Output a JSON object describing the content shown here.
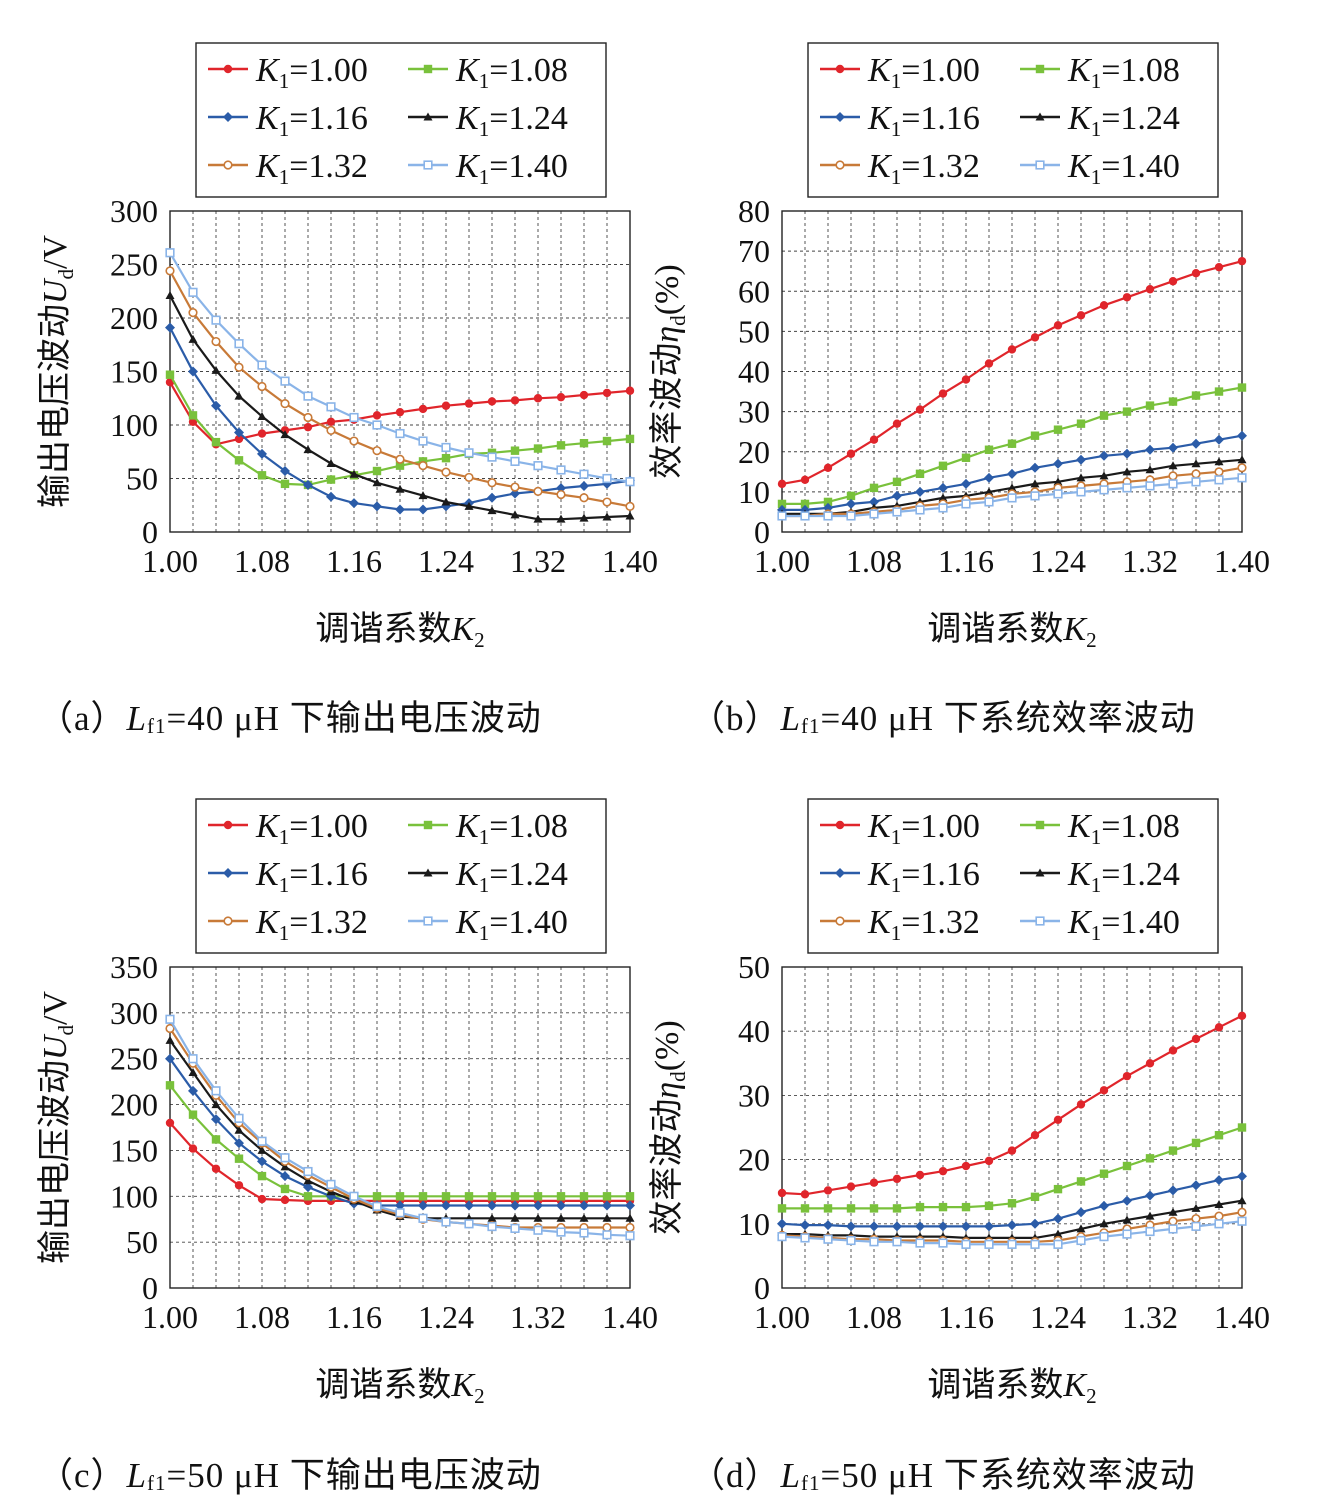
{
  "x_ticks": [
    "1.00",
    "1.08",
    "1.16",
    "1.24",
    "1.32",
    "1.40"
  ],
  "x_label": {
    "main": "调谐系数",
    "italic": "K",
    "sub": "2"
  },
  "legend_labels": [
    {
      "italic": "K",
      "sub": "1",
      "value": "=1.00"
    },
    {
      "italic": "K",
      "sub": "1",
      "value": "=1.08"
    },
    {
      "italic": "K",
      "sub": "1",
      "value": "=1.16"
    },
    {
      "italic": "K",
      "sub": "1",
      "value": "=1.24"
    },
    {
      "italic": "K",
      "sub": "1",
      "value": "=1.32"
    },
    {
      "italic": "K",
      "sub": "1",
      "value": "=1.40"
    }
  ],
  "series_colors": [
    "#e0252b",
    "#79c13b",
    "#2b5ca8",
    "#1a1a1a",
    "#c87a38",
    "#8ab4e8"
  ],
  "captions": [
    {
      "pre": "（a）",
      "italic": "L",
      "sub": "f1",
      "post": "=40 μH 下输出电压波动"
    },
    {
      "pre": "（b）",
      "italic": "L",
      "sub": "f1",
      "post": "=40 μH 下系统效率波动"
    },
    {
      "pre": "（c）",
      "italic": "L",
      "sub": "f1",
      "post": "=50 μH 下输出电压波动"
    },
    {
      "pre": "（d）",
      "italic": "L",
      "sub": "f1",
      "post": "=50 μH 下系统效率波动"
    }
  ],
  "chart_data": [
    {
      "type": "line",
      "ylabel": {
        "main": "输出电压波动",
        "italic": "U",
        "sub": "d",
        "post": "/V"
      },
      "ylim": [
        0,
        300
      ],
      "y_ticks": [
        "0",
        "50",
        "100",
        "150",
        "200",
        "250",
        "300"
      ],
      "xlim": [
        1.0,
        1.4
      ],
      "grid": true,
      "legend": "top",
      "x": [
        1.0,
        1.02,
        1.04,
        1.06,
        1.08,
        1.1,
        1.12,
        1.14,
        1.16,
        1.18,
        1.2,
        1.22,
        1.24,
        1.26,
        1.28,
        1.3,
        1.32,
        1.34,
        1.36,
        1.38,
        1.4
      ],
      "series": [
        {
          "name": "K1=1.00",
          "values": [
            140,
            103,
            82,
            87,
            92,
            95,
            98,
            103,
            105,
            109,
            112,
            115,
            118,
            120,
            122,
            123,
            125,
            126,
            128,
            130,
            132
          ]
        },
        {
          "name": "K1=1.08",
          "values": [
            147,
            109,
            84,
            67,
            53,
            45,
            44,
            49,
            53,
            57,
            62,
            66,
            69,
            73,
            74,
            76,
            78,
            81,
            83,
            85,
            87
          ]
        },
        {
          "name": "K1=1.16",
          "values": [
            191,
            150,
            118,
            93,
            73,
            57,
            44,
            33,
            27,
            24,
            21,
            21,
            24,
            27,
            32,
            36,
            38,
            41,
            43,
            45,
            48
          ]
        },
        {
          "name": "K1=1.24",
          "values": [
            221,
            180,
            151,
            127,
            108,
            91,
            77,
            64,
            54,
            46,
            40,
            34,
            28,
            24,
            20,
            16,
            12,
            12,
            13,
            14,
            15
          ]
        },
        {
          "name": "K1=1.32",
          "values": [
            244,
            205,
            178,
            154,
            136,
            120,
            107,
            95,
            85,
            76,
            68,
            62,
            56,
            51,
            46,
            42,
            38,
            35,
            32,
            28,
            24
          ]
        },
        {
          "name": "K1=1.40",
          "values": [
            261,
            224,
            198,
            176,
            156,
            141,
            127,
            117,
            107,
            100,
            92,
            85,
            79,
            74,
            70,
            66,
            62,
            58,
            54,
            50,
            47
          ]
        }
      ]
    },
    {
      "type": "line",
      "ylabel": {
        "main": "效率波动",
        "italic": "η",
        "sub": "d",
        "post": "(%)"
      },
      "ylim": [
        0,
        80
      ],
      "y_ticks": [
        "0",
        "10",
        "20",
        "30",
        "40",
        "50",
        "60",
        "70",
        "80"
      ],
      "xlim": [
        1.0,
        1.4
      ],
      "grid": true,
      "legend": "top",
      "x": [
        1.0,
        1.02,
        1.04,
        1.06,
        1.08,
        1.1,
        1.12,
        1.14,
        1.16,
        1.18,
        1.2,
        1.22,
        1.24,
        1.26,
        1.28,
        1.3,
        1.32,
        1.34,
        1.36,
        1.38,
        1.4
      ],
      "series": [
        {
          "name": "K1=1.00",
          "values": [
            12,
            13,
            16,
            19.5,
            23,
            27,
            30.5,
            34.5,
            38,
            42,
            45.5,
            48.5,
            51.5,
            54,
            56.5,
            58.5,
            60.5,
            62.5,
            64.5,
            66,
            67.5
          ]
        },
        {
          "name": "K1=1.08",
          "values": [
            7,
            7,
            7.5,
            9,
            11,
            12.5,
            14.5,
            16.5,
            18.5,
            20.5,
            22,
            24,
            25.5,
            27,
            29,
            30,
            31.5,
            32.5,
            34,
            35,
            36
          ]
        },
        {
          "name": "K1=1.16",
          "values": [
            5.5,
            5.5,
            6,
            7,
            7.5,
            9,
            10,
            11,
            12,
            13.5,
            14.5,
            16,
            17,
            18,
            19,
            19.5,
            20.5,
            21,
            22,
            23,
            24
          ]
        },
        {
          "name": "K1=1.24",
          "values": [
            4.5,
            4.5,
            4.5,
            5,
            6,
            6.5,
            7.5,
            8.5,
            9,
            10,
            11,
            12,
            12.5,
            13.5,
            14,
            15,
            15.5,
            16.5,
            17,
            17.5,
            18
          ]
        },
        {
          "name": "K1=1.32",
          "values": [
            4,
            4,
            4.5,
            4.5,
            5,
            5.5,
            6.5,
            7,
            8,
            8.5,
            9.5,
            10,
            11,
            11.5,
            12,
            12.5,
            13,
            14,
            14.5,
            15,
            16
          ]
        },
        {
          "name": "K1=1.40",
          "values": [
            4,
            4,
            4,
            4,
            4.5,
            5,
            5.5,
            6,
            7,
            7.5,
            8.5,
            9,
            9.5,
            10,
            10.5,
            11,
            11.5,
            12,
            12.5,
            13,
            13.5
          ]
        }
      ]
    },
    {
      "type": "line",
      "ylabel": {
        "main": "输出电压波动",
        "italic": "U",
        "sub": "d",
        "post": "/V"
      },
      "ylim": [
        0,
        350
      ],
      "y_ticks": [
        "0",
        "50",
        "100",
        "150",
        "200",
        "250",
        "300",
        "350"
      ],
      "xlim": [
        1.0,
        1.4
      ],
      "grid": true,
      "legend": "top",
      "x": [
        1.0,
        1.02,
        1.04,
        1.06,
        1.08,
        1.1,
        1.12,
        1.14,
        1.16,
        1.18,
        1.2,
        1.22,
        1.24,
        1.26,
        1.28,
        1.3,
        1.32,
        1.34,
        1.36,
        1.38,
        1.4
      ],
      "series": [
        {
          "name": "K1=1.00",
          "values": [
            180,
            152,
            130,
            112,
            97,
            96,
            95,
            95,
            95,
            95,
            95,
            95,
            95,
            95,
            95,
            95,
            95,
            95,
            95,
            95,
            95
          ]
        },
        {
          "name": "K1=1.08",
          "values": [
            221,
            189,
            162,
            141,
            122,
            108,
            100,
            100,
            100,
            100,
            100,
            100,
            100,
            100,
            100,
            100,
            100,
            100,
            100,
            100,
            100
          ]
        },
        {
          "name": "K1=1.16",
          "values": [
            250,
            215,
            184,
            158,
            138,
            122,
            110,
            100,
            92,
            90,
            90,
            90,
            90,
            90,
            90,
            90,
            90,
            90,
            90,
            90,
            90
          ]
        },
        {
          "name": "K1=1.24",
          "values": [
            270,
            235,
            200,
            172,
            150,
            132,
            117,
            105,
            95,
            85,
            78,
            76,
            76,
            76,
            76,
            76,
            76,
            76,
            76,
            76,
            76
          ]
        },
        {
          "name": "K1=1.32",
          "values": [
            283,
            245,
            210,
            180,
            158,
            138,
            123,
            110,
            97,
            87,
            80,
            75,
            72,
            70,
            68,
            66,
            66,
            66,
            66,
            66,
            66
          ]
        },
        {
          "name": "K1=1.40",
          "values": [
            293,
            250,
            215,
            185,
            160,
            142,
            127,
            113,
            100,
            89,
            82,
            76,
            72,
            70,
            67,
            65,
            63,
            61,
            60,
            58,
            57
          ]
        }
      ]
    },
    {
      "type": "line",
      "ylabel": {
        "main": "效率波动",
        "italic": "η",
        "sub": "d",
        "post": "(%)"
      },
      "ylim": [
        0,
        50
      ],
      "y_ticks": [
        "0",
        "10",
        "20",
        "30",
        "40",
        "50"
      ],
      "xlim": [
        1.0,
        1.4
      ],
      "grid": true,
      "legend": "top",
      "x": [
        1.0,
        1.02,
        1.04,
        1.06,
        1.08,
        1.1,
        1.12,
        1.14,
        1.16,
        1.18,
        1.2,
        1.22,
        1.24,
        1.26,
        1.28,
        1.3,
        1.32,
        1.34,
        1.36,
        1.38,
        1.4
      ],
      "series": [
        {
          "name": "K1=1.00",
          "values": [
            14.8,
            14.6,
            15.2,
            15.8,
            16.4,
            17,
            17.6,
            18.2,
            19,
            19.8,
            21.4,
            23.8,
            26.2,
            28.6,
            30.8,
            33,
            35,
            37,
            38.8,
            40.6,
            42.4
          ]
        },
        {
          "name": "K1=1.08",
          "values": [
            12.4,
            12.4,
            12.4,
            12.4,
            12.4,
            12.4,
            12.6,
            12.6,
            12.6,
            12.8,
            13.2,
            14.2,
            15.4,
            16.6,
            17.8,
            19,
            20.2,
            21.4,
            22.6,
            23.8,
            25
          ]
        },
        {
          "name": "K1=1.16",
          "values": [
            10,
            9.8,
            9.8,
            9.6,
            9.6,
            9.6,
            9.6,
            9.6,
            9.6,
            9.6,
            9.8,
            10,
            10.8,
            11.8,
            12.8,
            13.6,
            14.4,
            15.2,
            16,
            16.8,
            17.4
          ]
        },
        {
          "name": "K1=1.24",
          "values": [
            8.4,
            8.4,
            8.2,
            8.2,
            8,
            8,
            8,
            8,
            7.8,
            7.8,
            7.8,
            7.8,
            8.4,
            9.2,
            10,
            10.6,
            11.2,
            11.8,
            12.4,
            13,
            13.6
          ]
        },
        {
          "name": "K1=1.32",
          "values": [
            8.2,
            8,
            7.8,
            7.6,
            7.6,
            7.4,
            7.4,
            7.4,
            7.2,
            7.2,
            7.2,
            7.2,
            7.4,
            8,
            8.6,
            9.2,
            9.8,
            10.4,
            10.8,
            11.2,
            11.8
          ]
        },
        {
          "name": "K1=1.40",
          "values": [
            8,
            7.8,
            7.6,
            7.4,
            7.2,
            7.2,
            7,
            7,
            6.8,
            6.8,
            6.8,
            6.8,
            6.8,
            7.4,
            8,
            8.4,
            8.8,
            9.2,
            9.6,
            10,
            10.4
          ]
        }
      ]
    }
  ]
}
